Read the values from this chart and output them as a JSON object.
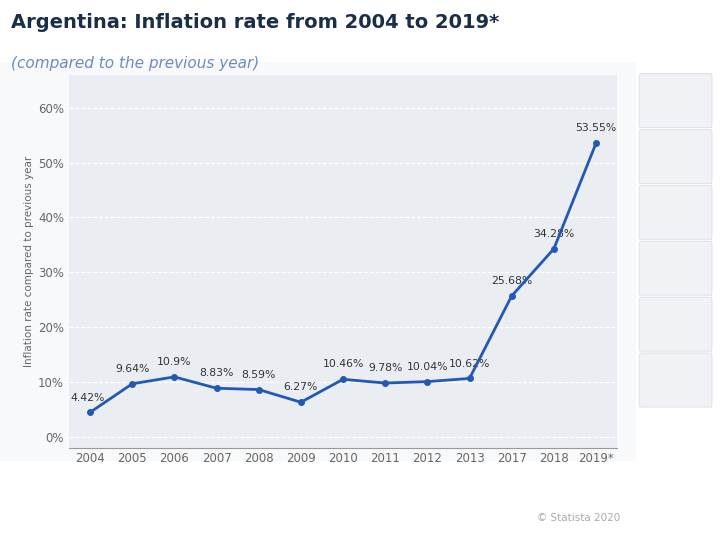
{
  "title": "Argentina: Inflation rate from 2004 to 2019*",
  "subtitle": "(compared to the previous year)",
  "years": [
    "2004",
    "2005",
    "2006",
    "2007",
    "2008",
    "2009",
    "2010",
    "2011",
    "2012",
    "2013",
    "2017",
    "2018",
    "2019*"
  ],
  "values": [
    4.42,
    9.64,
    10.9,
    8.83,
    8.59,
    6.27,
    10.46,
    9.78,
    10.04,
    10.62,
    25.68,
    34.28,
    53.55
  ],
  "labels": [
    "4.42%",
    "9.64%",
    "10.9%",
    "8.83%",
    "8.59%",
    "6.27%",
    "10.46%",
    "9.78%",
    "10.04%",
    "10.62%",
    "25.68%",
    "34.28%",
    "53.55%"
  ],
  "line_color": "#2458b5",
  "marker_color": "#2458b5",
  "plot_bg_color": "#eaeef3",
  "outer_bg": "#ffffff",
  "panel_bg": "#f8f9fb",
  "grid_color": "#ffffff",
  "ylabel": "Inflation rate compared to previous year",
  "yticks": [
    0,
    10,
    20,
    30,
    40,
    50,
    60
  ],
  "ytick_labels": [
    "0%",
    "10%",
    "20%",
    "30%",
    "40%",
    "50%",
    "60%"
  ],
  "ylim": [
    -2,
    66
  ],
  "title_color": "#1a2e4a",
  "subtitle_color": "#6b8cba",
  "annotation_color": "#333333",
  "footer_text": "© Statista 2020",
  "title_fontsize": 14,
  "subtitle_fontsize": 11,
  "label_fontsize": 7.8,
  "axis_fontsize": 8.5,
  "sidebar_bg": "#f0f2f5",
  "sidebar_icon_color": "#b0bac8"
}
